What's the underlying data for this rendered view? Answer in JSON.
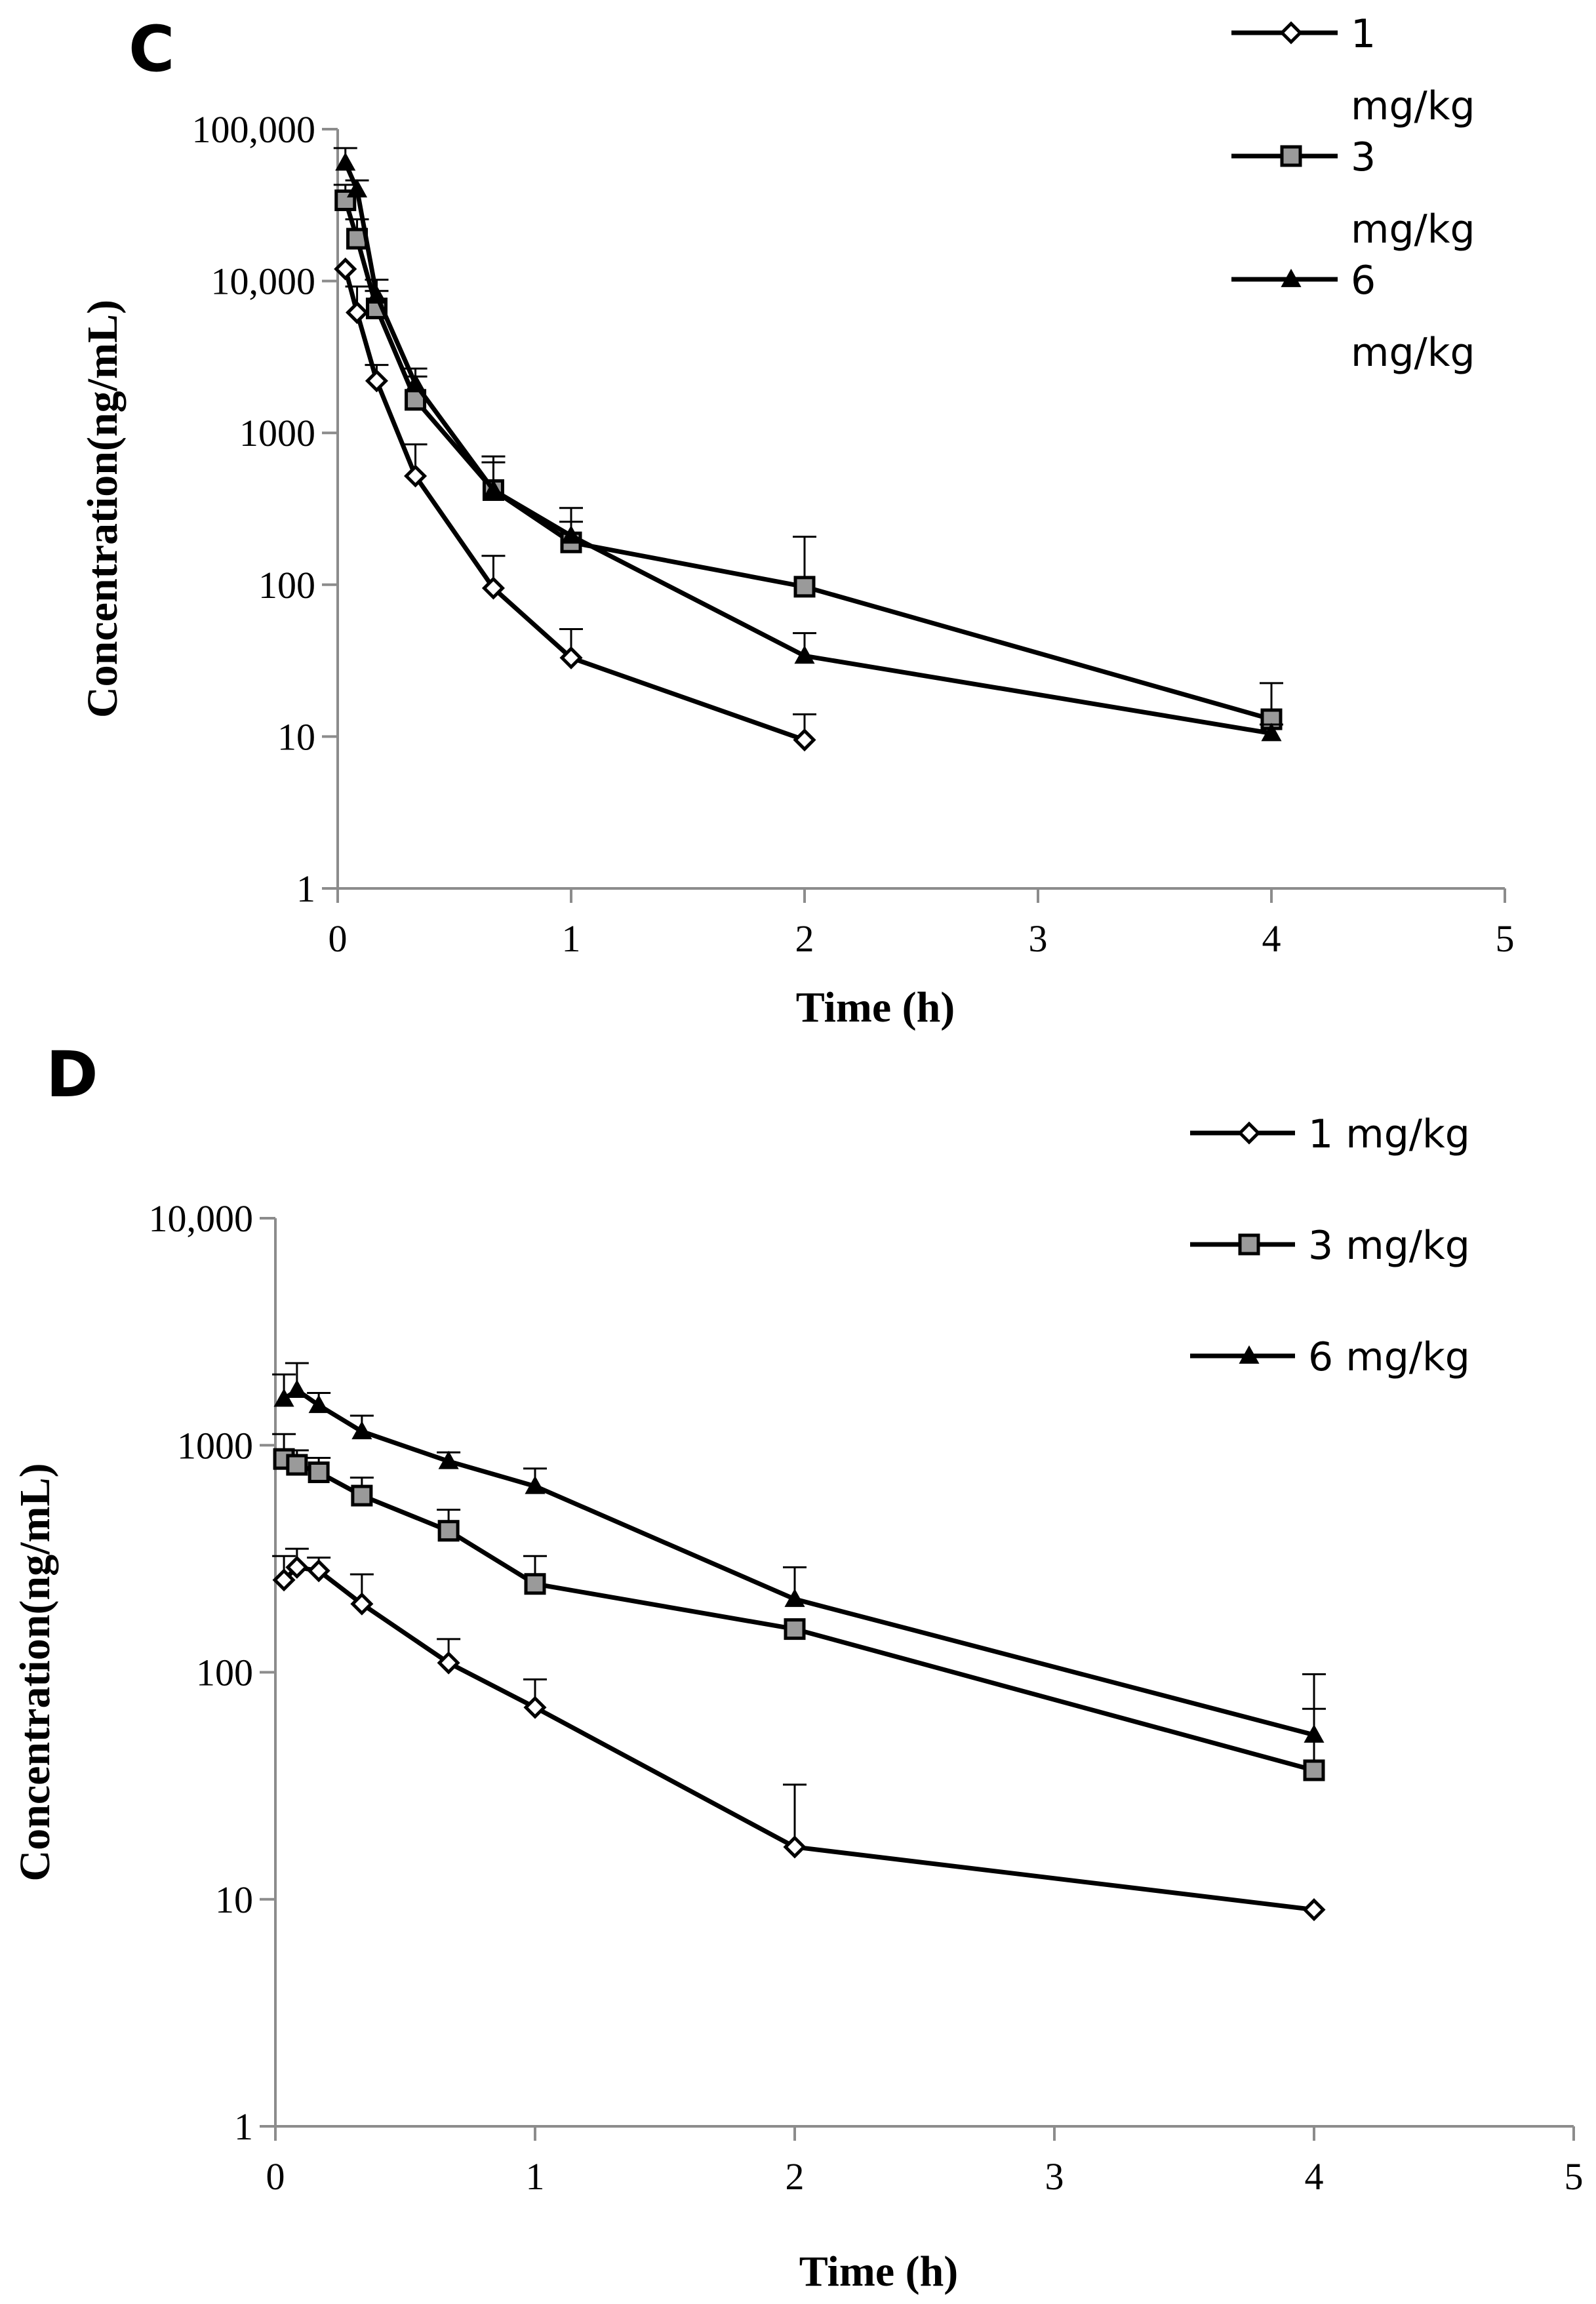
{
  "chart_data": [
    {
      "panel": "C",
      "type": "line",
      "yscale": "log",
      "xlabel": "Time (h)",
      "ylabel": "Concentration(ng/mL)",
      "xlim": [
        0,
        5
      ],
      "ylim": [
        1,
        100000
      ],
      "xticks": [
        0,
        1,
        2,
        3,
        4,
        5
      ],
      "xtick_labels": [
        "0",
        "1",
        "2",
        "3",
        "4",
        "5"
      ],
      "yticks": [
        1,
        10,
        100,
        1000,
        10000,
        100000
      ],
      "ytick_labels": [
        "1",
        "10",
        "100",
        "1000",
        "10,000",
        "100,000"
      ],
      "legend_position": "top-right",
      "series": [
        {
          "name": "1 mg/kg",
          "legend_lines": [
            "1",
            "mg/kg"
          ],
          "marker": "diamond",
          "x": [
            0.033,
            0.083,
            0.167,
            0.333,
            0.667,
            1,
            2
          ],
          "y": [
            12000,
            6200,
            2200,
            520,
            95,
            33,
            9.5
          ],
          "err": [
            null,
            3000,
            600,
            320,
            60,
            18,
            4.5
          ]
        },
        {
          "name": "3 mg/kg",
          "legend_lines": [
            "3",
            "mg/kg"
          ],
          "marker": "square",
          "x": [
            0.033,
            0.083,
            0.167,
            0.333,
            0.667,
            1,
            2,
            4
          ],
          "y": [
            34000,
            19000,
            6600,
            1650,
            420,
            190,
            97,
            13
          ],
          "err": [
            9000,
            6500,
            2000,
            700,
            220,
            70,
            110,
            9.5
          ]
        },
        {
          "name": "6 mg/kg",
          "legend_lines": [
            "6",
            "mg/kg"
          ],
          "marker": "triangle",
          "x": [
            0.033,
            0.083,
            0.167,
            0.333,
            0.667,
            1,
            2,
            4
          ],
          "y": [
            60000,
            40000,
            8000,
            2100,
            420,
            210,
            34,
            10.5
          ],
          "err": [
            15000,
            6000,
            2200,
            550,
            280,
            110,
            14,
            1.5
          ]
        }
      ]
    },
    {
      "panel": "D",
      "type": "line",
      "yscale": "log",
      "xlabel": "Time (h)",
      "ylabel": "Concentration(ng/mL)",
      "xlim": [
        0,
        5
      ],
      "ylim": [
        1,
        10000
      ],
      "xticks": [
        0,
        1,
        2,
        3,
        4,
        5
      ],
      "xtick_labels": [
        "0",
        "1",
        "2",
        "3",
        "4",
        "5"
      ],
      "yticks": [
        1,
        10,
        100,
        1000,
        10000
      ],
      "ytick_labels": [
        "1",
        "10",
        "100",
        "1000",
        "10,000"
      ],
      "legend_position": "top-right",
      "series": [
        {
          "name": "1 mg/kg",
          "legend_lines": [
            "1 mg/kg"
          ],
          "marker": "diamond",
          "x": [
            0.033,
            0.083,
            0.167,
            0.333,
            0.667,
            1,
            2,
            4
          ],
          "y": [
            255,
            290,
            280,
            200,
            110,
            70,
            17,
            9
          ],
          "err": [
            70,
            60,
            40,
            70,
            30,
            23,
            15,
            null
          ]
        },
        {
          "name": "3 mg/kg",
          "legend_lines": [
            "3 mg/kg"
          ],
          "marker": "square",
          "x": [
            0.033,
            0.083,
            0.167,
            0.333,
            0.667,
            1,
            2,
            4
          ],
          "y": [
            870,
            820,
            760,
            600,
            420,
            245,
            155,
            37
          ],
          "err": [
            250,
            130,
            120,
            120,
            100,
            80,
            null,
            32
          ]
        },
        {
          "name": "6 mg/kg",
          "legend_lines": [
            "6 mg/kg"
          ],
          "marker": "triangle",
          "x": [
            0.033,
            0.083,
            0.167,
            0.333,
            0.667,
            1,
            2,
            4
          ],
          "y": [
            1600,
            1750,
            1500,
            1150,
            850,
            660,
            210,
            53
          ],
          "err": [
            450,
            550,
            200,
            200,
            80,
            130,
            80,
            45
          ]
        }
      ]
    }
  ]
}
